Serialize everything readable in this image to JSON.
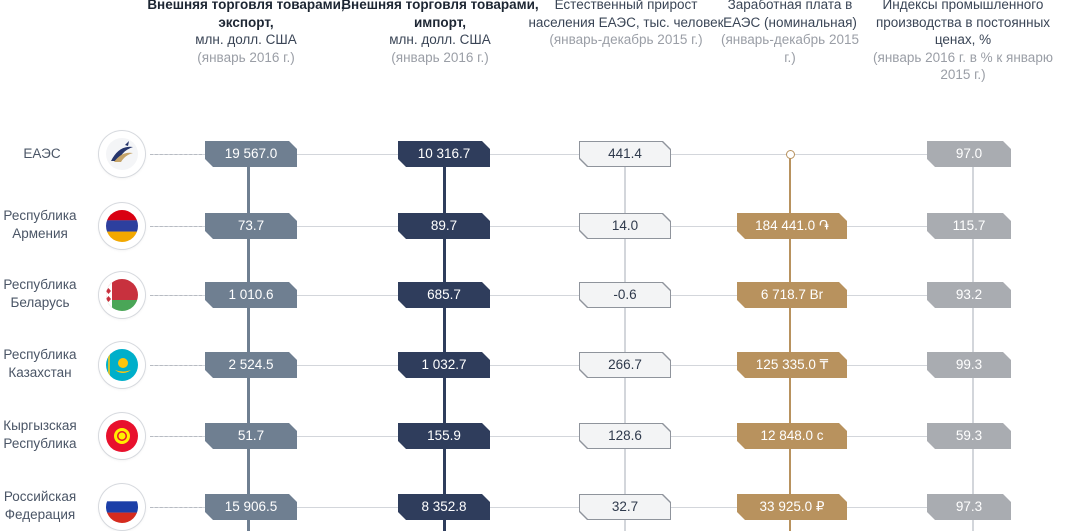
{
  "headers": [
    {
      "bold": "Внешняя торговля товарами, экспорт,",
      "unit": "млн. долл. США",
      "period": "(январь 2016 г.)"
    },
    {
      "bold": "Внешняя торговля товарами, импорт,",
      "unit": "млн. долл. США",
      "period": "(январь 2016 г.)"
    },
    {
      "desc": "Естественный прирост населения ЕАЭС, тыс. человек",
      "period": "(январь-декабрь 2015 г.)"
    },
    {
      "desc": "Заработная плата в ЕАЭС (номинальная)",
      "period": "(январь-декабрь 2015 г.)"
    },
    {
      "desc": "Индексы промышленного производства в постоянных ценах, %",
      "period": "(январь 2016 г. в % к январю 2015 г.)"
    }
  ],
  "rows": [
    {
      "label": "ЕАЭС",
      "flag": "eaeu-logo-icon",
      "export": "19 567.0",
      "import": "10 316.7",
      "population": "441.4",
      "wage": "",
      "index": "97.0"
    },
    {
      "label": "Республика Армения",
      "flag": "flag-armenia-icon",
      "export": "73.7",
      "import": "89.7",
      "population": "14.0",
      "wage": "184 441.0 ֏",
      "index": "115.7"
    },
    {
      "label": "Республика Беларусь",
      "flag": "flag-belarus-icon",
      "export": "1 010.6",
      "import": "685.7",
      "population": "-0.6",
      "wage": "6 718.7 Br",
      "index": "93.2"
    },
    {
      "label": "Республика Казахстан",
      "flag": "flag-kazakhstan-icon",
      "export": "2 524.5",
      "import": "1 032.7",
      "population": "266.7",
      "wage": "125 335.0 ₸",
      "index": "99.3"
    },
    {
      "label": "Кыргызская Республика",
      "flag": "flag-kyrgyzstan-icon",
      "export": "51.7",
      "import": "155.9",
      "population": "128.6",
      "wage": "12 848.0 с",
      "index": "59.3"
    },
    {
      "label": "Российская Федерация",
      "flag": "flag-russia-icon",
      "export": "15 906.5",
      "import": "8 352.8",
      "population": "32.7",
      "wage": "33 925.0 ₽",
      "index": "97.3"
    }
  ],
  "colors": {
    "export": "#6f7f91",
    "import": "#2f3d5c",
    "population": "#f3f4f5",
    "wage": "#b8925e",
    "index": "#a9acb1"
  }
}
